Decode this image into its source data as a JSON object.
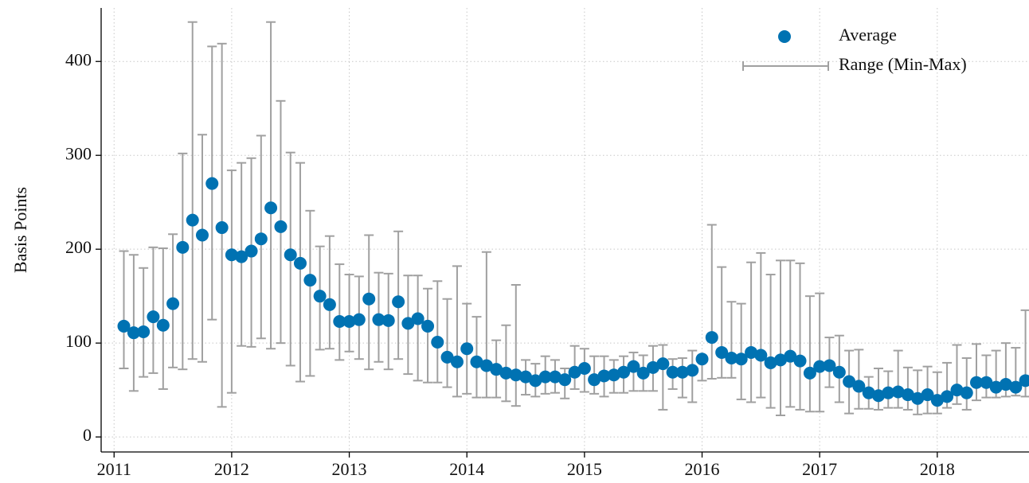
{
  "chart_data": {
    "type": "scatter",
    "ylabel": "Basis Points",
    "x": [
      2011.083,
      2011.167,
      2011.25,
      2011.333,
      2011.417,
      2011.5,
      2011.583,
      2011.667,
      2011.75,
      2011.833,
      2011.917,
      2012,
      2012.083,
      2012.167,
      2012.25,
      2012.333,
      2012.417,
      2012.5,
      2012.583,
      2012.667,
      2012.75,
      2012.833,
      2012.917,
      2013,
      2013.083,
      2013.167,
      2013.25,
      2013.333,
      2013.417,
      2013.5,
      2013.583,
      2013.667,
      2013.75,
      2013.833,
      2013.917,
      2014,
      2014.083,
      2014.167,
      2014.25,
      2014.333,
      2014.417,
      2014.5,
      2014.583,
      2014.667,
      2014.75,
      2014.833,
      2014.917,
      2015,
      2015.083,
      2015.167,
      2015.25,
      2015.333,
      2015.417,
      2015.5,
      2015.583,
      2015.667,
      2015.75,
      2015.833,
      2015.917,
      2016,
      2016.083,
      2016.167,
      2016.25,
      2016.333,
      2016.417,
      2016.5,
      2016.583,
      2016.667,
      2016.75,
      2016.833,
      2016.917,
      2017,
      2017.083,
      2017.167,
      2017.25,
      2017.333,
      2017.417,
      2017.5,
      2017.583,
      2017.667,
      2017.75,
      2017.833,
      2017.917,
      2018,
      2018.083,
      2018.167,
      2018.25,
      2018.333,
      2018.417,
      2018.5,
      2018.583,
      2018.667,
      2018.75
    ],
    "series": [
      {
        "name": "Average",
        "color": "#0072b2",
        "values": [
          118,
          111,
          112,
          128,
          119,
          142,
          202,
          231,
          215,
          270,
          223,
          194,
          192,
          198,
          211,
          244,
          224,
          194,
          185,
          167,
          150,
          141,
          123,
          123,
          125,
          147,
          125,
          124,
          144,
          121,
          126,
          118,
          101,
          85,
          80,
          94,
          80,
          76,
          72,
          68,
          66,
          64,
          60,
          64,
          64,
          61,
          69,
          73,
          61,
          65,
          66,
          69,
          75,
          68,
          74,
          78,
          69,
          69,
          71,
          83,
          106,
          90,
          84,
          83,
          90,
          87,
          79,
          82,
          86,
          81,
          68,
          75,
          76,
          69,
          59,
          54,
          47,
          44,
          47,
          48,
          45,
          41,
          45,
          39,
          43,
          50,
          47,
          58,
          58,
          53,
          56,
          53,
          60
        ]
      }
    ],
    "range": {
      "name": "Range (Min-Max)",
      "color": "#a0a0a0",
      "min": [
        73,
        49,
        64,
        68,
        51,
        74,
        72,
        83,
        80,
        125,
        32,
        47,
        97,
        96,
        105,
        94,
        100,
        76,
        59,
        65,
        93,
        94,
        82,
        91,
        83,
        72,
        80,
        72,
        83,
        67,
        60,
        58,
        58,
        53,
        43,
        46,
        42,
        42,
        42,
        38,
        33,
        45,
        43,
        46,
        47,
        41,
        51,
        48,
        46,
        43,
        47,
        47,
        49,
        49,
        49,
        29,
        51,
        42,
        37,
        60,
        62,
        63,
        63,
        40,
        37,
        42,
        31,
        23,
        32,
        29,
        27,
        27,
        53,
        37,
        25,
        30,
        30,
        29,
        31,
        31,
        29,
        24,
        25,
        25,
        31,
        35,
        29,
        39,
        42,
        42,
        43,
        44,
        43
      ],
      "max": [
        198,
        194,
        180,
        202,
        201,
        216,
        302,
        442,
        322,
        416,
        419,
        284,
        292,
        297,
        321,
        442,
        358,
        303,
        292,
        241,
        203,
        214,
        184,
        173,
        171,
        215,
        175,
        174,
        219,
        172,
        172,
        158,
        166,
        147,
        182,
        142,
        128,
        197,
        103,
        119,
        162,
        82,
        78,
        86,
        82,
        73,
        97,
        94,
        86,
        86,
        82,
        86,
        90,
        87,
        97,
        98,
        83,
        84,
        92,
        86,
        226,
        181,
        144,
        142,
        186,
        196,
        173,
        188,
        188,
        185,
        150,
        153,
        106,
        108,
        92,
        93,
        64,
        73,
        70,
        92,
        74,
        71,
        75,
        69,
        79,
        98,
        84,
        99,
        87,
        92,
        100,
        95,
        135
      ]
    },
    "xlim": [
      2010.89,
      2018.78
    ],
    "xticks": [
      2011,
      2012,
      2013,
      2014,
      2015,
      2016,
      2017,
      2018
    ],
    "ylim": [
      -16,
      457
    ],
    "yticks": [
      0,
      100,
      200,
      300,
      400
    ],
    "grid": true,
    "legend": "upper right"
  }
}
